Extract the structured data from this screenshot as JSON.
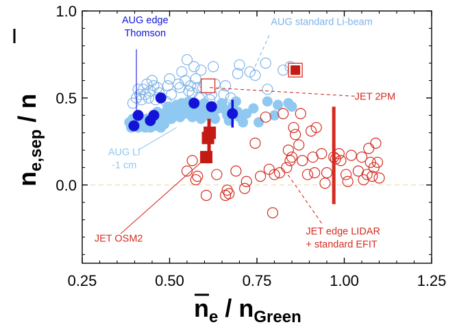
{
  "chart_data": {
    "type": "scatter",
    "title": "",
    "xlabel": {
      "main": "n",
      "sub": "e",
      "tail": " / n",
      "tail_sub": "Green"
    },
    "ylabel": {
      "main": "n",
      "sub": "e,sep",
      "tail": " / n"
    },
    "xlim": [
      0.25,
      1.25
    ],
    "ylim": [
      -0.45,
      1.0
    ],
    "xticks": [
      "0.25",
      "0.50",
      "0.75",
      "1.00",
      "1.25"
    ],
    "yticks": [
      "0.0",
      "0.5",
      "1.0"
    ],
    "zero_line": 0.0,
    "colors": {
      "aug_thomson": "#1313d8",
      "aug_li": "#8fc8f0",
      "aug_li_open": "#7eb3e8",
      "jet": "#d42b20",
      "jet_dark": "#c41a14",
      "zero": "#ece0b8"
    },
    "series": [
      {
        "name": "AUG standard Li-beam",
        "marker": "open-circle",
        "points": [
          [
            0.395,
            0.47
          ],
          [
            0.405,
            0.5
          ],
          [
            0.41,
            0.55
          ],
          [
            0.415,
            0.52
          ],
          [
            0.42,
            0.49
          ],
          [
            0.425,
            0.55
          ],
          [
            0.43,
            0.52
          ],
          [
            0.435,
            0.58
          ],
          [
            0.44,
            0.5
          ],
          [
            0.445,
            0.54
          ],
          [
            0.45,
            0.6
          ],
          [
            0.455,
            0.57
          ],
          [
            0.46,
            0.49
          ],
          [
            0.465,
            0.56
          ],
          [
            0.47,
            0.53
          ],
          [
            0.49,
            0.48
          ],
          [
            0.495,
            0.57
          ],
          [
            0.5,
            0.61
          ],
          [
            0.505,
            0.52
          ],
          [
            0.525,
            0.58
          ],
          [
            0.53,
            0.56
          ],
          [
            0.535,
            0.65
          ],
          [
            0.545,
            0.6
          ],
          [
            0.55,
            0.72
          ],
          [
            0.555,
            0.54
          ],
          [
            0.56,
            0.57
          ],
          [
            0.565,
            0.53
          ],
          [
            0.57,
            0.68
          ],
          [
            0.575,
            0.61
          ],
          [
            0.58,
            0.56
          ],
          [
            0.585,
            0.5
          ],
          [
            0.59,
            0.66
          ],
          [
            0.595,
            0.56
          ],
          [
            0.6,
            0.58
          ],
          [
            0.61,
            0.55
          ],
          [
            0.615,
            0.49
          ],
          [
            0.62,
            0.52
          ],
          [
            0.625,
            0.68
          ],
          [
            0.63,
            0.58
          ],
          [
            0.64,
            0.45
          ],
          [
            0.655,
            0.52
          ],
          [
            0.66,
            0.57
          ],
          [
            0.665,
            0.46
          ],
          [
            0.675,
            0.5
          ],
          [
            0.695,
            0.64
          ],
          [
            0.7,
            0.69
          ],
          [
            0.73,
            0.65
          ],
          [
            0.745,
            0.63
          ],
          [
            0.775,
            0.7
          ],
          [
            0.78,
            0.55
          ],
          [
            0.825,
            0.66
          ],
          [
            0.845,
            0.68
          ]
        ]
      },
      {
        "name": "AUG Li -1 cm",
        "marker": "filled-circle",
        "points": [
          [
            0.385,
            0.36
          ],
          [
            0.39,
            0.33
          ],
          [
            0.395,
            0.38
          ],
          [
            0.4,
            0.34
          ],
          [
            0.405,
            0.35
          ],
          [
            0.41,
            0.33
          ],
          [
            0.415,
            0.37
          ],
          [
            0.42,
            0.34
          ],
          [
            0.425,
            0.36
          ],
          [
            0.43,
            0.33
          ],
          [
            0.435,
            0.38
          ],
          [
            0.44,
            0.35
          ],
          [
            0.445,
            0.33
          ],
          [
            0.45,
            0.39
          ],
          [
            0.455,
            0.36
          ],
          [
            0.46,
            0.34
          ],
          [
            0.465,
            0.42
          ],
          [
            0.47,
            0.36
          ],
          [
            0.475,
            0.33
          ],
          [
            0.48,
            0.38
          ],
          [
            0.485,
            0.35
          ],
          [
            0.49,
            0.42
          ],
          [
            0.495,
            0.45
          ],
          [
            0.5,
            0.41
          ],
          [
            0.505,
            0.38
          ],
          [
            0.51,
            0.44
          ],
          [
            0.515,
            0.4
          ],
          [
            0.52,
            0.46
          ],
          [
            0.525,
            0.42
          ],
          [
            0.53,
            0.39
          ],
          [
            0.535,
            0.47
          ],
          [
            0.54,
            0.44
          ],
          [
            0.545,
            0.41
          ],
          [
            0.55,
            0.45
          ],
          [
            0.555,
            0.48
          ],
          [
            0.56,
            0.42
          ],
          [
            0.565,
            0.39
          ],
          [
            0.57,
            0.44
          ],
          [
            0.575,
            0.4
          ],
          [
            0.58,
            0.46
          ],
          [
            0.585,
            0.43
          ],
          [
            0.59,
            0.38
          ],
          [
            0.595,
            0.41
          ],
          [
            0.6,
            0.47
          ],
          [
            0.605,
            0.44
          ],
          [
            0.61,
            0.4
          ],
          [
            0.615,
            0.43
          ],
          [
            0.62,
            0.45
          ],
          [
            0.625,
            0.41
          ],
          [
            0.63,
            0.38
          ],
          [
            0.64,
            0.44
          ],
          [
            0.65,
            0.47
          ],
          [
            0.66,
            0.43
          ],
          [
            0.665,
            0.4
          ],
          [
            0.67,
            0.37
          ],
          [
            0.68,
            0.45
          ],
          [
            0.69,
            0.48
          ],
          [
            0.695,
            0.42
          ],
          [
            0.7,
            0.39
          ],
          [
            0.71,
            0.36
          ],
          [
            0.72,
            0.41
          ],
          [
            0.74,
            0.44
          ],
          [
            0.755,
            0.36
          ],
          [
            0.78,
            0.48
          ],
          [
            0.8,
            0.4
          ],
          [
            0.81,
            0.46
          ],
          [
            0.84,
            0.47
          ],
          [
            0.85,
            0.45
          ]
        ]
      },
      {
        "name": "AUG edge Thomson",
        "marker": "filled-circle",
        "points": [
          [
            0.398,
            0.34
          ],
          [
            0.41,
            0.4
          ],
          [
            0.445,
            0.37
          ],
          [
            0.455,
            0.4
          ],
          [
            0.475,
            0.5
          ],
          [
            0.57,
            0.47
          ],
          [
            0.62,
            0.45
          ],
          [
            0.68,
            0.41
          ]
        ],
        "errorbars": [
          {
            "x": 0.68,
            "y": 0.41,
            "lo": 0.33,
            "hi": 0.49
          }
        ]
      },
      {
        "name": "JET edge LIDAR + standard EFIT",
        "marker": "open-circle",
        "points": [
          [
            0.55,
            0.08
          ],
          [
            0.565,
            0.14
          ],
          [
            0.575,
            0.03
          ],
          [
            0.58,
            0.05
          ],
          [
            0.605,
            -0.06
          ],
          [
            0.635,
            0.06
          ],
          [
            0.66,
            -0.06
          ],
          [
            0.665,
            -0.03
          ],
          [
            0.67,
            -0.05
          ],
          [
            0.69,
            0.08
          ],
          [
            0.715,
            -0.02
          ],
          [
            0.72,
            0.02
          ],
          [
            0.745,
            0.24
          ],
          [
            0.76,
            0.05
          ],
          [
            0.775,
            0.39
          ],
          [
            0.785,
            0.09
          ],
          [
            0.795,
            -0.16
          ],
          [
            0.8,
            0.06
          ],
          [
            0.815,
            0.07
          ],
          [
            0.825,
            0.41
          ],
          [
            0.835,
            0.1
          ],
          [
            0.84,
            0.2
          ],
          [
            0.845,
            0.14
          ],
          [
            0.85,
            0.16
          ],
          [
            0.855,
            0.33
          ],
          [
            0.86,
            0.29
          ],
          [
            0.87,
            0.23
          ],
          [
            0.875,
            0.41
          ],
          [
            0.88,
            0.14
          ],
          [
            0.895,
            0.06
          ],
          [
            0.905,
            0.31
          ],
          [
            0.91,
            0.16
          ],
          [
            0.915,
            0.07
          ],
          [
            0.92,
            0.33
          ],
          [
            0.935,
            0.18
          ],
          [
            0.945,
            0.01
          ],
          [
            0.95,
            0.07
          ],
          [
            0.97,
            0.16
          ],
          [
            0.975,
            0.15
          ],
          [
            0.985,
            0.18
          ],
          [
            0.99,
            0.14
          ],
          [
            1.005,
            0.06
          ],
          [
            1.01,
            0.02
          ],
          [
            1.02,
            0.17
          ],
          [
            1.04,
            0.08
          ],
          [
            1.05,
            0.16
          ],
          [
            1.055,
            0.03
          ],
          [
            1.065,
            0.06
          ],
          [
            1.07,
            0.21
          ],
          [
            1.075,
            0.13
          ],
          [
            1.08,
            0.05
          ],
          [
            1.085,
            0.1
          ],
          [
            1.09,
            0.24
          ],
          [
            1.095,
            0.13
          ],
          [
            1.1,
            0.04
          ]
        ],
        "errorbars": [
          {
            "x": 0.97,
            "y": 0.16,
            "lo": -0.11,
            "hi": 0.45
          }
        ]
      },
      {
        "name": "JET OSM2",
        "marker": "filled-square",
        "points": [
          [
            0.605,
            0.16
          ],
          [
            0.61,
            0.27
          ],
          [
            0.615,
            0.3
          ]
        ],
        "errorbars": [
          {
            "x": 0.613,
            "y": 0.29,
            "lo": 0.18,
            "hi": 0.38
          }
        ]
      },
      {
        "name": "JET 2PM",
        "marker": "open-square",
        "points": [
          [
            0.61,
            0.57
          ],
          [
            0.86,
            0.66
          ]
        ],
        "filled_inner": [
          [
            0.86,
            0.66
          ]
        ]
      }
    ],
    "annotations": [
      {
        "id": "aug-thomson",
        "lines": [
          "AUG edge",
          "Thomson"
        ],
        "color": "#1313d8",
        "anchor": "middle",
        "tx": 0.43,
        "ty": 0.93,
        "lead": [
          [
            0.405,
            0.78
          ],
          [
            0.405,
            0.4
          ]
        ]
      },
      {
        "id": "aug-li-beam",
        "lines": [
          "AUG standard Li-beam"
        ],
        "color": "#7eb3e8",
        "anchor": "start",
        "tx": 0.79,
        "ty": 0.92,
        "lead": [
          [
            0.785,
            0.86
          ],
          [
            0.74,
            0.66
          ]
        ],
        "dashed": true
      },
      {
        "id": "jet-2pm",
        "lines": [
          "JET 2PM"
        ],
        "color": "#d42b20",
        "anchor": "start",
        "tx": 1.03,
        "ty": 0.49,
        "lead": [
          [
            1.03,
            0.51
          ],
          [
            0.615,
            0.56
          ]
        ],
        "dashed": true
      },
      {
        "id": "aug-li",
        "lines": [
          "AUG Li",
          "-1 cm"
        ],
        "color": "#8fc8f0",
        "anchor": "middle",
        "tx": 0.37,
        "ty": 0.17,
        "lead": [
          [
            0.41,
            0.2
          ],
          [
            0.52,
            0.33
          ]
        ]
      },
      {
        "id": "jet-osm2",
        "lines": [
          "JET OSM2"
        ],
        "color": "#d42b20",
        "anchor": "start",
        "tx": 0.285,
        "ty": -0.325,
        "lead": [
          [
            0.36,
            -0.28
          ],
          [
            0.59,
            0.13
          ]
        ]
      },
      {
        "id": "jet-lidar",
        "lines": [
          "JET edge LIDAR",
          "+ standard EFIT"
        ],
        "color": "#d42b20",
        "anchor": "start",
        "tx": 0.89,
        "ty": -0.285,
        "lead": [
          [
            0.935,
            -0.22
          ],
          [
            0.835,
            0.07
          ]
        ],
        "dashed": true
      }
    ]
  }
}
